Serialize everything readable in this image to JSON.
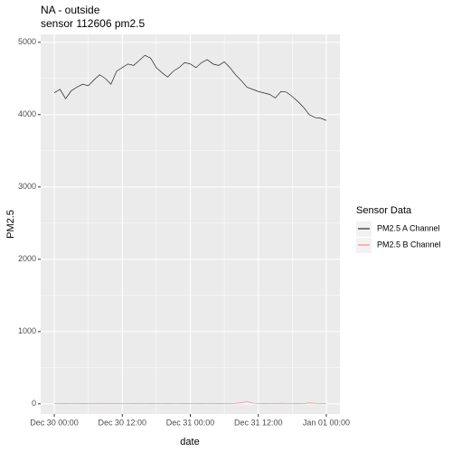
{
  "chart_data": {
    "type": "line",
    "title": "NA - outside",
    "subtitle": "sensor 112606 pm2.5",
    "x_label": "date",
    "y_label": "PM2.5",
    "legend_title": "Sensor Data",
    "x": [
      "Dec 30 00:00",
      "Dec 30 01:00",
      "Dec 30 02:00",
      "Dec 30 03:00",
      "Dec 30 04:00",
      "Dec 30 05:00",
      "Dec 30 06:00",
      "Dec 30 07:00",
      "Dec 30 08:00",
      "Dec 30 09:00",
      "Dec 30 10:00",
      "Dec 30 11:00",
      "Dec 30 12:00",
      "Dec 30 13:00",
      "Dec 30 14:00",
      "Dec 30 15:00",
      "Dec 30 16:00",
      "Dec 30 17:00",
      "Dec 30 18:00",
      "Dec 30 19:00",
      "Dec 30 20:00",
      "Dec 30 21:00",
      "Dec 30 22:00",
      "Dec 30 23:00",
      "Dec 31 00:00",
      "Dec 31 01:00",
      "Dec 31 02:00",
      "Dec 31 03:00",
      "Dec 31 04:00",
      "Dec 31 05:00",
      "Dec 31 06:00",
      "Dec 31 07:00",
      "Dec 31 08:00",
      "Dec 31 09:00",
      "Dec 31 10:00",
      "Dec 31 11:00",
      "Dec 31 12:00",
      "Dec 31 13:00",
      "Dec 31 14:00",
      "Dec 31 15:00",
      "Dec 31 16:00",
      "Dec 31 17:00",
      "Dec 31 18:00",
      "Dec 31 19:00",
      "Dec 31 20:00",
      "Dec 31 21:00",
      "Dec 31 22:00",
      "Dec 31 23:00",
      "Jan 01 00:00"
    ],
    "series": [
      {
        "name": "PM2.5 A Channel",
        "color": "#000000",
        "values": [
          4300,
          4350,
          4220,
          4330,
          4380,
          4420,
          4400,
          4480,
          4550,
          4500,
          4420,
          4600,
          4650,
          4700,
          4680,
          4750,
          4820,
          4780,
          4650,
          4580,
          4520,
          4600,
          4650,
          4720,
          4700,
          4650,
          4720,
          4760,
          4700,
          4680,
          4730,
          4650,
          4550,
          4470,
          4380,
          4350,
          4320,
          4300,
          4280,
          4230,
          4320,
          4310,
          4250,
          4180,
          4100,
          4000,
          3960,
          3950,
          3920
        ]
      },
      {
        "name": "PM2.5 B Channel",
        "color": "#f8766d",
        "values": [
          5,
          5,
          6,
          5,
          5,
          6,
          5,
          6,
          8,
          6,
          5,
          6,
          5,
          5,
          6,
          5,
          5,
          6,
          5,
          5,
          6,
          5,
          5,
          6,
          5,
          5,
          6,
          5,
          5,
          6,
          5,
          5,
          8,
          15,
          35,
          10,
          5,
          6,
          5,
          5,
          8,
          6,
          5,
          6,
          5,
          12,
          8,
          5,
          5
        ]
      }
    ],
    "ylim": [
      -140,
      5110
    ],
    "yticks": [
      0,
      1000,
      2000,
      3000,
      4000,
      5000
    ],
    "xticks": [
      "Dec 30 00:00",
      "Dec 30 12:00",
      "Dec 31 00:00",
      "Dec 31 12:00",
      "Jan 01 00:00"
    ],
    "grid": true
  }
}
